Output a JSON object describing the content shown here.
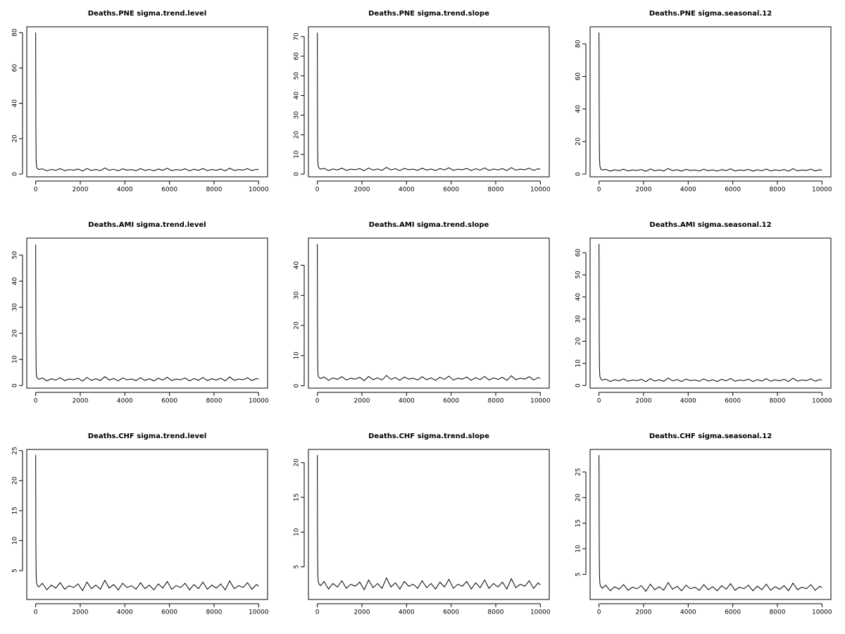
{
  "chart_data": [
    {
      "type": "line",
      "title": "Deaths.PNE sigma.trend.level",
      "color": "#000000",
      "x": [
        0,
        10,
        20,
        40,
        80,
        150,
        300,
        500,
        700,
        900,
        1100,
        1300,
        1500,
        1700,
        1900,
        2100,
        2300,
        2500,
        2700,
        2900,
        3100,
        3300,
        3500,
        3700,
        3900,
        4100,
        4300,
        4500,
        4700,
        4900,
        5100,
        5300,
        5500,
        5700,
        5900,
        6100,
        6300,
        6500,
        6700,
        6900,
        7100,
        7300,
        7500,
        7700,
        7900,
        8100,
        8300,
        8500,
        8700,
        8900,
        9100,
        9300,
        9500,
        9700,
        9900,
        10000
      ],
      "values": [
        80,
        25,
        8,
        4,
        3,
        2.6,
        2.9,
        1.8,
        2.6,
        2.1,
        3.0,
        1.9,
        2.5,
        2.2,
        2.8,
        1.7,
        3.1,
        2.0,
        2.6,
        1.9,
        3.4,
        2.1,
        2.7,
        1.8,
        2.9,
        2.2,
        2.5,
        1.9,
        3.0,
        2.0,
        2.6,
        1.8,
        2.8,
        2.1,
        3.2,
        1.9,
        2.5,
        2.2,
        2.9,
        1.8,
        2.7,
        2.0,
        3.1,
        1.9,
        2.6,
        2.1,
        2.8,
        1.8,
        3.3,
        2.0,
        2.5,
        2.2,
        3.0,
        1.9,
        2.7,
        2.4
      ],
      "xlim": [
        -400,
        10400
      ],
      "ylim": [
        -1.6,
        83.3
      ],
      "xticks": [
        0,
        2000,
        4000,
        6000,
        8000,
        10000
      ],
      "yticks": [
        0,
        20,
        40,
        60,
        80
      ]
    },
    {
      "type": "line",
      "title": "Deaths.PNE sigma.trend.slope",
      "color": "#000000",
      "x": [
        0,
        10,
        20,
        40,
        80,
        150,
        300,
        500,
        700,
        900,
        1100,
        1300,
        1500,
        1700,
        1900,
        2100,
        2300,
        2500,
        2700,
        2900,
        3100,
        3300,
        3500,
        3700,
        3900,
        4100,
        4300,
        4500,
        4700,
        4900,
        5100,
        5300,
        5500,
        5700,
        5900,
        6100,
        6300,
        6500,
        6700,
        6900,
        7100,
        7300,
        7500,
        7700,
        7900,
        8100,
        8300,
        8500,
        8700,
        8900,
        9100,
        9300,
        9500,
        9700,
        9900,
        10000
      ],
      "values": [
        72,
        22,
        7,
        4,
        3,
        2.5,
        2.9,
        1.8,
        2.6,
        2.1,
        3.0,
        1.9,
        2.5,
        2.2,
        2.8,
        1.7,
        3.1,
        2.0,
        2.6,
        1.9,
        3.4,
        2.1,
        2.7,
        1.8,
        2.9,
        2.2,
        2.5,
        1.9,
        3.0,
        2.0,
        2.6,
        1.8,
        2.8,
        2.1,
        3.2,
        1.9,
        2.5,
        2.2,
        2.9,
        1.8,
        2.7,
        2.0,
        3.1,
        1.9,
        2.6,
        2.1,
        2.8,
        1.8,
        3.3,
        2.0,
        2.5,
        2.2,
        3.0,
        1.9,
        2.7,
        2.4
      ],
      "xlim": [
        -400,
        10400
      ],
      "ylim": [
        -1.4,
        75
      ],
      "xticks": [
        0,
        2000,
        4000,
        6000,
        8000,
        10000
      ],
      "yticks": [
        0,
        10,
        20,
        30,
        40,
        50,
        60,
        70
      ]
    },
    {
      "type": "line",
      "title": "Deaths.PNE sigma.seasonal.12",
      "color": "#000000",
      "x": [
        0,
        10,
        20,
        40,
        80,
        150,
        300,
        500,
        700,
        900,
        1100,
        1300,
        1500,
        1700,
        1900,
        2100,
        2300,
        2500,
        2700,
        2900,
        3100,
        3300,
        3500,
        3700,
        3900,
        4100,
        4300,
        4500,
        4700,
        4900,
        5100,
        5300,
        5500,
        5700,
        5900,
        6100,
        6300,
        6500,
        6700,
        6900,
        7100,
        7300,
        7500,
        7700,
        7900,
        8100,
        8300,
        8500,
        8700,
        8900,
        9100,
        9300,
        9500,
        9700,
        9900,
        10000
      ],
      "values": [
        87,
        30,
        10,
        5,
        3,
        2.5,
        2.9,
        1.8,
        2.6,
        2.1,
        3.0,
        1.9,
        2.5,
        2.2,
        2.8,
        1.7,
        3.1,
        2.0,
        2.6,
        1.9,
        3.4,
        2.1,
        2.7,
        1.8,
        2.9,
        2.2,
        2.5,
        1.9,
        3.0,
        2.0,
        2.6,
        1.8,
        2.8,
        2.1,
        3.2,
        1.9,
        2.5,
        2.2,
        2.9,
        1.8,
        2.7,
        2.0,
        3.1,
        1.9,
        2.6,
        2.1,
        2.8,
        1.8,
        3.3,
        2.0,
        2.5,
        2.2,
        3.0,
        1.9,
        2.7,
        2.4
      ],
      "xlim": [
        -400,
        10400
      ],
      "ylim": [
        -1.7,
        90.5
      ],
      "xticks": [
        0,
        2000,
        4000,
        6000,
        8000,
        10000
      ],
      "yticks": [
        0,
        20,
        40,
        60,
        80
      ]
    },
    {
      "type": "line",
      "title": "Deaths.AMI sigma.trend.level",
      "color": "#000000",
      "x": [
        0,
        10,
        20,
        40,
        80,
        150,
        300,
        500,
        700,
        900,
        1100,
        1300,
        1500,
        1700,
        1900,
        2100,
        2300,
        2500,
        2700,
        2900,
        3100,
        3300,
        3500,
        3700,
        3900,
        4100,
        4300,
        4500,
        4700,
        4900,
        5100,
        5300,
        5500,
        5700,
        5900,
        6100,
        6300,
        6500,
        6700,
        6900,
        7100,
        7300,
        7500,
        7700,
        7900,
        8100,
        8300,
        8500,
        8700,
        8900,
        9100,
        9300,
        9500,
        9700,
        9900,
        10000
      ],
      "values": [
        54,
        18,
        6,
        3.5,
        2.8,
        2.4,
        2.9,
        1.8,
        2.6,
        2.1,
        3.0,
        1.9,
        2.5,
        2.2,
        2.8,
        1.7,
        3.1,
        2.0,
        2.6,
        1.9,
        3.4,
        2.1,
        2.7,
        1.8,
        2.9,
        2.2,
        2.5,
        1.9,
        3.0,
        2.0,
        2.6,
        1.8,
        2.8,
        2.1,
        3.2,
        1.9,
        2.5,
        2.2,
        2.9,
        1.8,
        2.7,
        2.0,
        3.1,
        1.9,
        2.6,
        2.1,
        2.8,
        1.8,
        3.3,
        2.0,
        2.5,
        2.2,
        3.0,
        1.9,
        2.7,
        2.4
      ],
      "xlim": [
        -400,
        10400
      ],
      "ylim": [
        -1,
        56.5
      ],
      "xticks": [
        0,
        2000,
        4000,
        6000,
        8000,
        10000
      ],
      "yticks": [
        0,
        10,
        20,
        30,
        40,
        50
      ]
    },
    {
      "type": "line",
      "title": "Deaths.AMI sigma.trend.slope",
      "color": "#000000",
      "x": [
        0,
        10,
        20,
        40,
        80,
        150,
        300,
        500,
        700,
        900,
        1100,
        1300,
        1500,
        1700,
        1900,
        2100,
        2300,
        2500,
        2700,
        2900,
        3100,
        3300,
        3500,
        3700,
        3900,
        4100,
        4300,
        4500,
        4700,
        4900,
        5100,
        5300,
        5500,
        5700,
        5900,
        6100,
        6300,
        6500,
        6700,
        6900,
        7100,
        7300,
        7500,
        7700,
        7900,
        8100,
        8300,
        8500,
        8700,
        8900,
        9100,
        9300,
        9500,
        9700,
        9900,
        10000
      ],
      "values": [
        47,
        15,
        5,
        3.2,
        2.7,
        2.4,
        2.9,
        1.8,
        2.6,
        2.1,
        3.0,
        1.9,
        2.5,
        2.2,
        2.8,
        1.7,
        3.1,
        2.0,
        2.6,
        1.9,
        3.4,
        2.1,
        2.7,
        1.8,
        2.9,
        2.2,
        2.5,
        1.9,
        3.0,
        2.0,
        2.6,
        1.8,
        2.8,
        2.1,
        3.2,
        1.9,
        2.5,
        2.2,
        2.9,
        1.8,
        2.7,
        2.0,
        3.1,
        1.9,
        2.6,
        2.1,
        2.8,
        1.8,
        3.3,
        2.0,
        2.5,
        2.2,
        3.0,
        1.9,
        2.7,
        2.4
      ],
      "xlim": [
        -400,
        10400
      ],
      "ylim": [
        -0.8,
        49
      ],
      "xticks": [
        0,
        2000,
        4000,
        6000,
        8000,
        10000
      ],
      "yticks": [
        0,
        10,
        20,
        30,
        40
      ]
    },
    {
      "type": "line",
      "title": "Deaths.AMI sigma.seasonal.12",
      "color": "#000000",
      "x": [
        0,
        10,
        20,
        40,
        80,
        150,
        300,
        500,
        700,
        900,
        1100,
        1300,
        1500,
        1700,
        1900,
        2100,
        2300,
        2500,
        2700,
        2900,
        3100,
        3300,
        3500,
        3700,
        3900,
        4100,
        4300,
        4500,
        4700,
        4900,
        5100,
        5300,
        5500,
        5700,
        5900,
        6100,
        6300,
        6500,
        6700,
        6900,
        7100,
        7300,
        7500,
        7700,
        7900,
        8100,
        8300,
        8500,
        8700,
        8900,
        9100,
        9300,
        9500,
        9700,
        9900,
        10000
      ],
      "values": [
        64,
        22,
        8,
        4,
        3,
        2.4,
        2.9,
        1.8,
        2.6,
        2.1,
        3.0,
        1.9,
        2.5,
        2.2,
        2.8,
        1.7,
        3.1,
        2.0,
        2.6,
        1.9,
        3.4,
        2.1,
        2.7,
        1.8,
        2.9,
        2.2,
        2.5,
        1.9,
        3.0,
        2.0,
        2.6,
        1.8,
        2.8,
        2.1,
        3.2,
        1.9,
        2.5,
        2.2,
        2.9,
        1.8,
        2.7,
        2.0,
        3.1,
        1.9,
        2.6,
        2.1,
        2.8,
        1.8,
        3.3,
        2.0,
        2.5,
        2.2,
        3.0,
        1.9,
        2.7,
        2.4
      ],
      "xlim": [
        -400,
        10400
      ],
      "ylim": [
        -1.2,
        66.6
      ],
      "xticks": [
        0,
        2000,
        4000,
        6000,
        8000,
        10000
      ],
      "yticks": [
        0,
        10,
        20,
        30,
        40,
        50,
        60
      ]
    },
    {
      "type": "line",
      "title": "Deaths.CHF sigma.trend.level",
      "color": "#000000",
      "x": [
        0,
        10,
        20,
        40,
        80,
        150,
        300,
        500,
        700,
        900,
        1100,
        1300,
        1500,
        1700,
        1900,
        2100,
        2300,
        2500,
        2700,
        2900,
        3100,
        3300,
        3500,
        3700,
        3900,
        4100,
        4300,
        4500,
        4700,
        4900,
        5100,
        5300,
        5500,
        5700,
        5900,
        6100,
        6300,
        6500,
        6700,
        6900,
        7100,
        7300,
        7500,
        7700,
        7900,
        8100,
        8300,
        8500,
        8700,
        8900,
        9100,
        9300,
        9500,
        9700,
        9900,
        10000
      ],
      "values": [
        24.3,
        9,
        4.5,
        3,
        2.5,
        2.3,
        2.9,
        1.8,
        2.6,
        2.1,
        3.0,
        1.9,
        2.5,
        2.2,
        2.8,
        1.7,
        3.1,
        2.0,
        2.6,
        1.9,
        3.4,
        2.1,
        2.7,
        1.8,
        2.9,
        2.2,
        2.5,
        1.9,
        3.0,
        2.0,
        2.6,
        1.8,
        2.8,
        2.1,
        3.2,
        1.9,
        2.5,
        2.2,
        2.9,
        1.8,
        2.7,
        2.0,
        3.1,
        1.9,
        2.6,
        2.1,
        2.8,
        1.8,
        3.3,
        2.0,
        2.5,
        2.2,
        3.0,
        1.9,
        2.7,
        2.4
      ],
      "xlim": [
        -400,
        10400
      ],
      "ylim": [
        0.2,
        25.2
      ],
      "xticks": [
        0,
        2000,
        4000,
        6000,
        8000,
        10000
      ],
      "yticks": [
        5,
        10,
        15,
        20,
        25
      ]
    },
    {
      "type": "line",
      "title": "Deaths.CHF sigma.trend.slope",
      "color": "#000000",
      "x": [
        0,
        10,
        20,
        40,
        80,
        150,
        300,
        500,
        700,
        900,
        1100,
        1300,
        1500,
        1700,
        1900,
        2100,
        2300,
        2500,
        2700,
        2900,
        3100,
        3300,
        3500,
        3700,
        3900,
        4100,
        4300,
        4500,
        4700,
        4900,
        5100,
        5300,
        5500,
        5700,
        5900,
        6100,
        6300,
        6500,
        6700,
        6900,
        7100,
        7300,
        7500,
        7700,
        7900,
        8100,
        8300,
        8500,
        8700,
        8900,
        9100,
        9300,
        9500,
        9700,
        9900,
        10000
      ],
      "values": [
        21.1,
        8,
        4,
        2.9,
        2.5,
        2.3,
        2.9,
        1.8,
        2.6,
        2.1,
        3.0,
        1.9,
        2.5,
        2.2,
        2.8,
        1.7,
        3.1,
        2.0,
        2.6,
        1.9,
        3.4,
        2.1,
        2.7,
        1.8,
        2.9,
        2.2,
        2.5,
        1.9,
        3.0,
        2.0,
        2.6,
        1.8,
        2.8,
        2.1,
        3.2,
        1.9,
        2.5,
        2.2,
        2.9,
        1.8,
        2.7,
        2.0,
        3.1,
        1.9,
        2.6,
        2.1,
        2.8,
        1.8,
        3.3,
        2.0,
        2.5,
        2.2,
        3.0,
        1.9,
        2.7,
        2.4
      ],
      "xlim": [
        -400,
        10400
      ],
      "ylim": [
        0.3,
        21.9
      ],
      "xticks": [
        0,
        2000,
        4000,
        6000,
        8000,
        10000
      ],
      "yticks": [
        5,
        10,
        15,
        20
      ]
    },
    {
      "type": "line",
      "title": "Deaths.CHF sigma.seasonal.12",
      "color": "#000000",
      "x": [
        0,
        10,
        20,
        40,
        80,
        150,
        300,
        500,
        700,
        900,
        1100,
        1300,
        1500,
        1700,
        1900,
        2100,
        2300,
        2500,
        2700,
        2900,
        3100,
        3300,
        3500,
        3700,
        3900,
        4100,
        4300,
        4500,
        4700,
        4900,
        5100,
        5300,
        5500,
        5700,
        5900,
        6100,
        6300,
        6500,
        6700,
        6900,
        7100,
        7300,
        7500,
        7700,
        7900,
        8100,
        8300,
        8500,
        8700,
        8900,
        9100,
        9300,
        9500,
        9700,
        9900,
        10000
      ],
      "values": [
        28.3,
        10,
        5,
        3.2,
        2.6,
        2.3,
        2.9,
        1.8,
        2.6,
        2.1,
        3.0,
        1.9,
        2.5,
        2.2,
        2.8,
        1.7,
        3.1,
        2.0,
        2.6,
        1.9,
        3.4,
        2.1,
        2.7,
        1.8,
        2.9,
        2.2,
        2.5,
        1.9,
        3.0,
        2.0,
        2.6,
        1.8,
        2.8,
        2.1,
        3.2,
        1.9,
        2.5,
        2.2,
        2.9,
        1.8,
        2.7,
        2.0,
        3.1,
        1.9,
        2.6,
        2.1,
        2.8,
        1.8,
        3.3,
        2.0,
        2.5,
        2.2,
        3.0,
        1.9,
        2.7,
        2.4
      ],
      "xlim": [
        -400,
        10400
      ],
      "ylim": [
        0.1,
        29.4
      ],
      "xticks": [
        0,
        2000,
        4000,
        6000,
        8000,
        10000
      ],
      "yticks": [
        5,
        10,
        15,
        20,
        25
      ]
    }
  ]
}
